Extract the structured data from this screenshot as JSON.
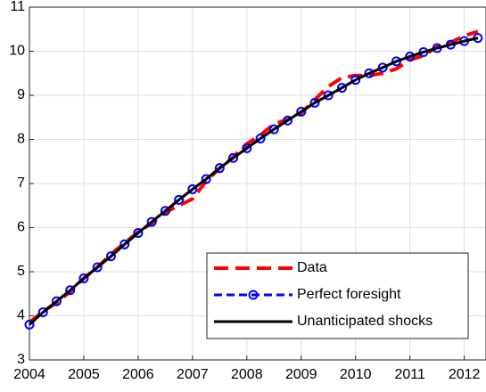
{
  "chart_data": {
    "type": "line",
    "x": [
      2004,
      2004.25,
      2004.5,
      2004.75,
      2005,
      2005.25,
      2005.5,
      2005.75,
      2006,
      2006.25,
      2006.5,
      2006.75,
      2007,
      2007.25,
      2007.5,
      2007.75,
      2008,
      2008.25,
      2008.5,
      2008.75,
      2009,
      2009.25,
      2009.5,
      2009.75,
      2010,
      2010.25,
      2010.5,
      2010.75,
      2011,
      2011.25,
      2011.5,
      2011.75,
      2012,
      2012.25
    ],
    "series": [
      {
        "name": "Data",
        "color": "#ff0000",
        "dash": true,
        "marker": false,
        "values": [
          3.85,
          4.1,
          4.3,
          4.55,
          4.85,
          5.1,
          5.4,
          5.65,
          5.9,
          6.1,
          6.35,
          6.5,
          6.65,
          7.05,
          7.35,
          7.6,
          7.9,
          8.1,
          8.35,
          8.45,
          8.6,
          8.9,
          9.2,
          9.4,
          9.45,
          9.45,
          9.5,
          9.6,
          9.8,
          9.9,
          10.1,
          10.2,
          10.35,
          10.45
        ]
      },
      {
        "name": "Perfect foresight",
        "color": "#0000ff",
        "dash": true,
        "marker": true,
        "values": [
          3.8,
          4.08,
          4.33,
          4.58,
          4.85,
          5.1,
          5.35,
          5.62,
          5.88,
          6.13,
          6.38,
          6.63,
          6.87,
          7.1,
          7.35,
          7.58,
          7.8,
          8.02,
          8.23,
          8.43,
          8.63,
          8.83,
          9.0,
          9.17,
          9.35,
          9.5,
          9.63,
          9.77,
          9.88,
          9.98,
          10.07,
          10.15,
          10.23,
          10.3
        ]
      },
      {
        "name": "Unanticipated shocks",
        "color": "#000000",
        "dash": false,
        "marker": false,
        "values": [
          3.8,
          4.08,
          4.33,
          4.58,
          4.85,
          5.1,
          5.35,
          5.62,
          5.88,
          6.13,
          6.38,
          6.63,
          6.87,
          7.1,
          7.35,
          7.58,
          7.8,
          8.02,
          8.23,
          8.43,
          8.63,
          8.83,
          9.0,
          9.17,
          9.35,
          9.5,
          9.63,
          9.77,
          9.88,
          9.98,
          10.07,
          10.15,
          10.23,
          10.3
        ]
      }
    ],
    "xlim": [
      2004,
      2012.4
    ],
    "xticks": [
      2004,
      2005,
      2006,
      2007,
      2008,
      2009,
      2010,
      2011,
      2012
    ],
    "ylim": [
      3,
      11
    ],
    "yticks": [
      3,
      4,
      5,
      6,
      7,
      8,
      9,
      10,
      11
    ],
    "grid": true,
    "legend": "lower right"
  }
}
